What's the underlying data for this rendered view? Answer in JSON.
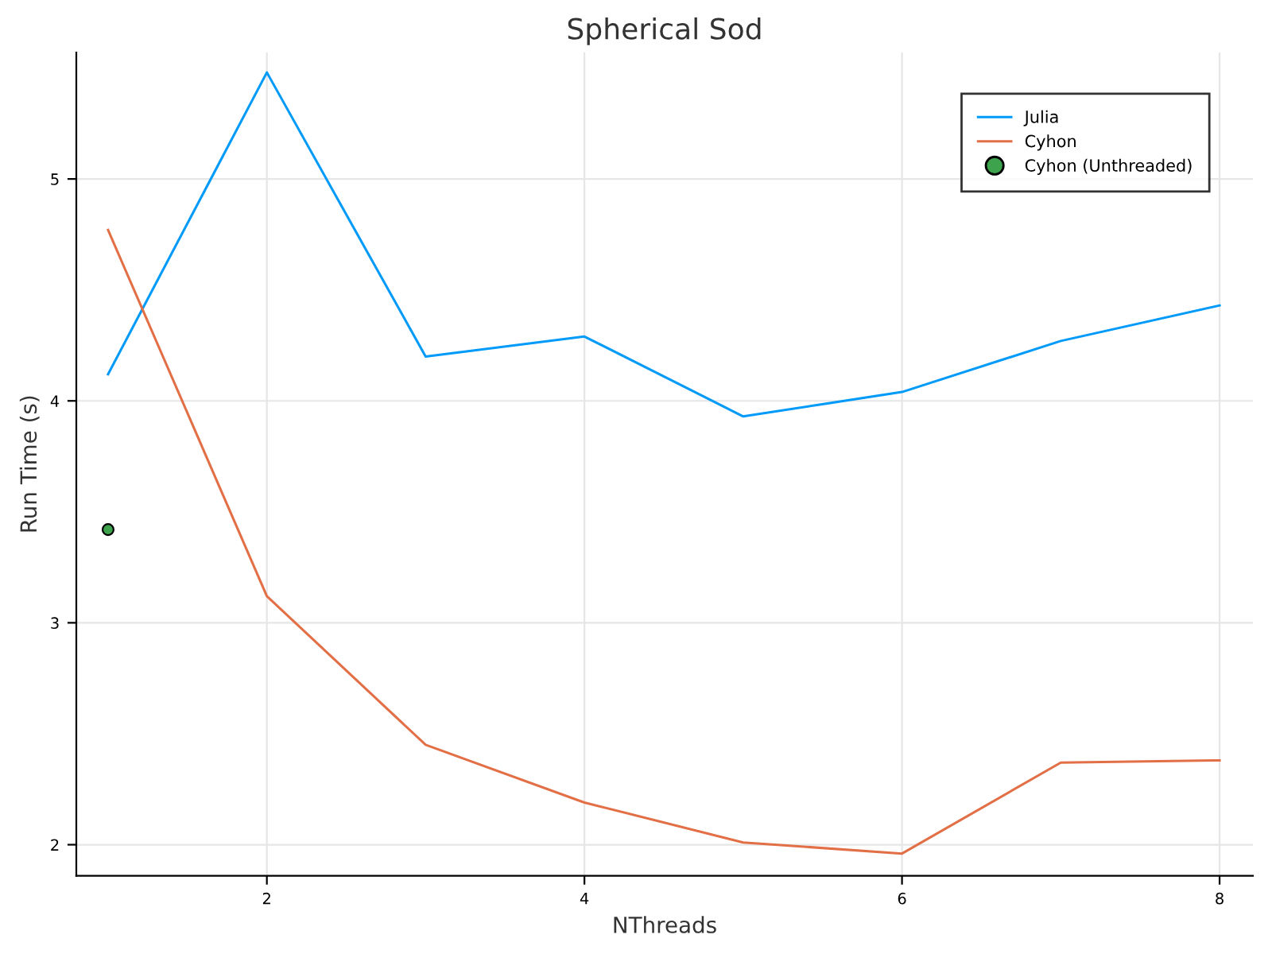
{
  "chart_data": {
    "type": "line",
    "title": "Spherical Sod",
    "xlabel": "NThreads",
    "ylabel": "Run Time (s)",
    "x": [
      1,
      2,
      3,
      4,
      5,
      6,
      7,
      8
    ],
    "series": [
      {
        "name": "Julia",
        "color": "#009af9",
        "values": [
          4.12,
          5.48,
          4.2,
          4.29,
          3.93,
          4.04,
          4.27,
          4.43
        ]
      },
      {
        "name": "Cyhon",
        "color": "#e26f46",
        "values": [
          4.77,
          3.12,
          2.45,
          2.19,
          2.01,
          1.96,
          2.37,
          2.38
        ]
      },
      {
        "name": "Cyhon (Unthreaded)",
        "color": "#3da44d",
        "type": "scatter",
        "marker": "circle",
        "x": [
          1
        ],
        "values": [
          3.42
        ]
      }
    ],
    "xlim": [
      0.8,
      8.21
    ],
    "ylim": [
      1.86,
      5.57
    ],
    "xticks": [
      2,
      4,
      6,
      8
    ],
    "yticks": [
      2,
      3,
      4,
      5
    ],
    "grid": true,
    "legend": "top right"
  }
}
